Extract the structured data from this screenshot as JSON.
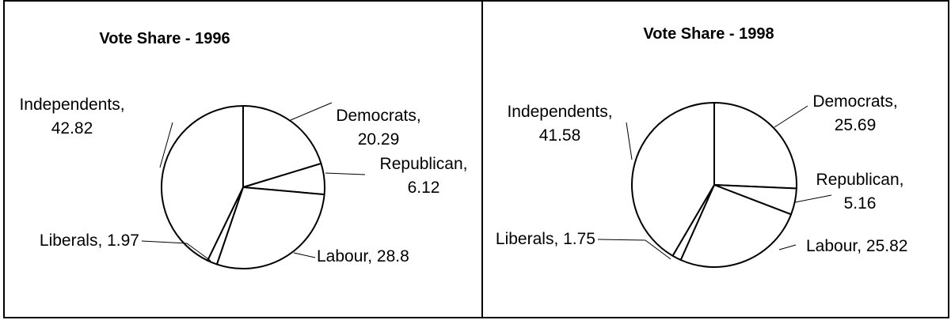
{
  "chart_data": [
    {
      "type": "pie",
      "title": "Vote Share - 1996",
      "start_angle_deg": 0,
      "direction": "clockwise",
      "slice_fill": "#ffffff",
      "slice_stroke": "#000000",
      "legend": "none",
      "slices": [
        {
          "label": "Democrats",
          "value": 20.29,
          "lines": [
            "Democrats,",
            "20.29"
          ]
        },
        {
          "label": "Republican",
          "value": 6.12,
          "lines": [
            "Republican,",
            "6.12"
          ]
        },
        {
          "label": "Labour",
          "value": 28.8,
          "lines": [
            "Labour, 28.8"
          ]
        },
        {
          "label": "Liberals",
          "value": 1.97,
          "lines": [
            "Liberals, 1.97"
          ]
        },
        {
          "label": "Independents",
          "value": 42.82,
          "lines": [
            "Independents,",
            "42.82"
          ]
        }
      ]
    },
    {
      "type": "pie",
      "title": "Vote Share - 1998",
      "start_angle_deg": 0,
      "direction": "clockwise",
      "slice_fill": "#ffffff",
      "slice_stroke": "#000000",
      "legend": "none",
      "slices": [
        {
          "label": "Democrats",
          "value": 25.69,
          "lines": [
            "Democrats,",
            "25.69"
          ]
        },
        {
          "label": "Republican",
          "value": 5.16,
          "lines": [
            "Republican,",
            "5.16"
          ]
        },
        {
          "label": "Labour",
          "value": 25.82,
          "lines": [
            "Labour, 25.82"
          ]
        },
        {
          "label": "Liberals",
          "value": 1.75,
          "lines": [
            "Liberals, 1.75"
          ]
        },
        {
          "label": "Independents",
          "value": 41.58,
          "lines": [
            "Independents,",
            "41.58"
          ]
        }
      ]
    }
  ]
}
